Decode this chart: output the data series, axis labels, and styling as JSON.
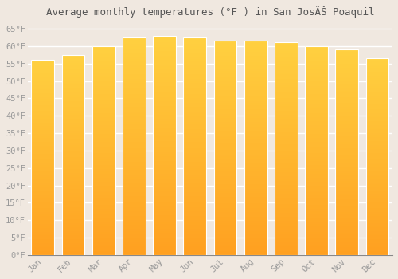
{
  "title": "Average monthly temperatures (°F ) in San JosÃŠ Poaquil",
  "months": [
    "Jan",
    "Feb",
    "Mar",
    "Apr",
    "May",
    "Jun",
    "Jul",
    "Aug",
    "Sep",
    "Oct",
    "Nov",
    "Dec"
  ],
  "values": [
    56.0,
    57.5,
    60.0,
    62.5,
    63.0,
    62.5,
    61.5,
    61.5,
    61.0,
    60.0,
    59.0,
    56.5
  ],
  "bar_color_top": "#FFD040",
  "bar_color_bottom": "#FFA020",
  "background_color": "#F0E8E0",
  "plot_bg_color": "#F0E8E0",
  "grid_color": "#FFFFFF",
  "ytick_labels": [
    "0°F",
    "5°F",
    "10°F",
    "15°F",
    "20°F",
    "25°F",
    "30°F",
    "35°F",
    "40°F",
    "45°F",
    "50°F",
    "55°F",
    "60°F",
    "65°F"
  ],
  "ytick_values": [
    0,
    5,
    10,
    15,
    20,
    25,
    30,
    35,
    40,
    45,
    50,
    55,
    60,
    65
  ],
  "ylim": [
    0,
    67
  ],
  "tick_font_size": 7.5,
  "title_font_size": 9,
  "font_color": "#999999",
  "title_font_color": "#555555",
  "bar_width": 0.75
}
